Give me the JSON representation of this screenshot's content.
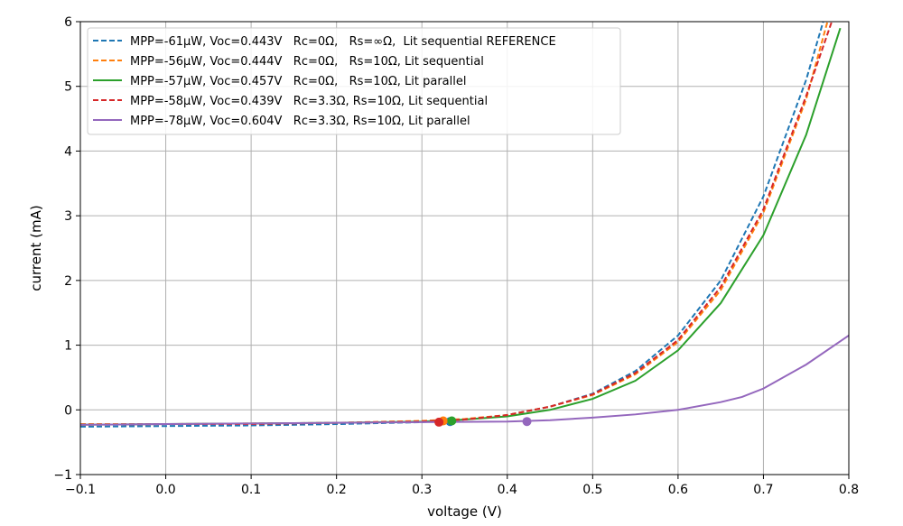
{
  "chart_data": {
    "type": "line",
    "xlabel": "voltage (V)",
    "ylabel": "current (mA)",
    "xlim": [
      -0.1,
      0.8
    ],
    "ylim": [
      -1,
      6
    ],
    "xticks": [
      -0.1,
      0.0,
      0.1,
      0.2,
      0.3,
      0.4,
      0.5,
      0.6,
      0.7,
      0.8
    ],
    "xtick_labels": [
      "−0.1",
      "0.0",
      "0.1",
      "0.2",
      "0.3",
      "0.4",
      "0.5",
      "0.6",
      "0.7",
      "0.8"
    ],
    "yticks": [
      -1,
      0,
      1,
      2,
      3,
      4,
      5,
      6
    ],
    "ytick_labels": [
      "−1",
      "0",
      "1",
      "2",
      "3",
      "4",
      "5",
      "6"
    ],
    "grid": true,
    "legend_position": "top-left",
    "series": [
      {
        "name": "MPP=-61µW, Voc=0.443V   Rc=0Ω,   Rs=∞Ω,  Lit sequential REFERENCE",
        "color": "#1f77b4",
        "style": "dashed",
        "x": [
          -0.1,
          0.0,
          0.1,
          0.2,
          0.3,
          0.35,
          0.4,
          0.45,
          0.5,
          0.55,
          0.6,
          0.65,
          0.7,
          0.75,
          0.77
        ],
        "y": [
          -0.26,
          -0.25,
          -0.24,
          -0.22,
          -0.19,
          -0.15,
          -0.08,
          0.05,
          0.25,
          0.6,
          1.15,
          2.0,
          3.3,
          5.1,
          6.0
        ],
        "mpp": {
          "x": 0.333,
          "y": -0.18
        }
      },
      {
        "name": "MPP=-56µW, Voc=0.444V   Rc=0Ω,   Rs=10Ω, Lit sequential",
        "color": "#ff7f0e",
        "style": "dashed",
        "x": [
          -0.1,
          0.0,
          0.1,
          0.2,
          0.3,
          0.35,
          0.4,
          0.45,
          0.5,
          0.55,
          0.6,
          0.65,
          0.7,
          0.75,
          0.775
        ],
        "y": [
          -0.22,
          -0.22,
          -0.21,
          -0.2,
          -0.17,
          -0.14,
          -0.08,
          0.05,
          0.23,
          0.55,
          1.05,
          1.85,
          3.05,
          4.8,
          6.0
        ],
        "mpp": {
          "x": 0.325,
          "y": -0.17
        }
      },
      {
        "name": "MPP=-57µW, Voc=0.457V   Rc=0Ω,   Rs=10Ω, Lit parallel",
        "color": "#2ca02c",
        "style": "solid",
        "x": [
          -0.1,
          0.0,
          0.1,
          0.2,
          0.3,
          0.35,
          0.4,
          0.45,
          0.5,
          0.55,
          0.6,
          0.65,
          0.7,
          0.75,
          0.79
        ],
        "y": [
          -0.23,
          -0.22,
          -0.21,
          -0.2,
          -0.18,
          -0.15,
          -0.1,
          0.0,
          0.17,
          0.45,
          0.92,
          1.65,
          2.7,
          4.25,
          5.9
        ],
        "mpp": {
          "x": 0.335,
          "y": -0.17
        }
      },
      {
        "name": "MPP=-58µW, Voc=0.439V   Rc=3.3Ω, Rs=10Ω, Lit sequential",
        "color": "#d62728",
        "style": "dashed",
        "x": [
          -0.1,
          0.0,
          0.1,
          0.2,
          0.3,
          0.35,
          0.4,
          0.45,
          0.5,
          0.55,
          0.6,
          0.65,
          0.7,
          0.75,
          0.78
        ],
        "y": [
          -0.23,
          -0.22,
          -0.22,
          -0.2,
          -0.18,
          -0.15,
          -0.08,
          0.05,
          0.24,
          0.57,
          1.08,
          1.9,
          3.1,
          4.85,
          6.0
        ],
        "mpp": {
          "x": 0.32,
          "y": -0.19
        }
      },
      {
        "name": "MPP=-78µW, Voc=0.604V   Rc=3.3Ω, Rs=10Ω, Lit parallel",
        "color": "#9467bd",
        "style": "solid",
        "x": [
          -0.1,
          0.0,
          0.1,
          0.2,
          0.3,
          0.4,
          0.45,
          0.5,
          0.55,
          0.6,
          0.65,
          0.675,
          0.7,
          0.75,
          0.8
        ],
        "y": [
          -0.23,
          -0.22,
          -0.21,
          -0.2,
          -0.19,
          -0.18,
          -0.16,
          -0.12,
          -0.07,
          0.0,
          0.12,
          0.2,
          0.33,
          0.7,
          1.15
        ],
        "mpp": {
          "x": 0.423,
          "y": -0.18
        }
      }
    ]
  }
}
